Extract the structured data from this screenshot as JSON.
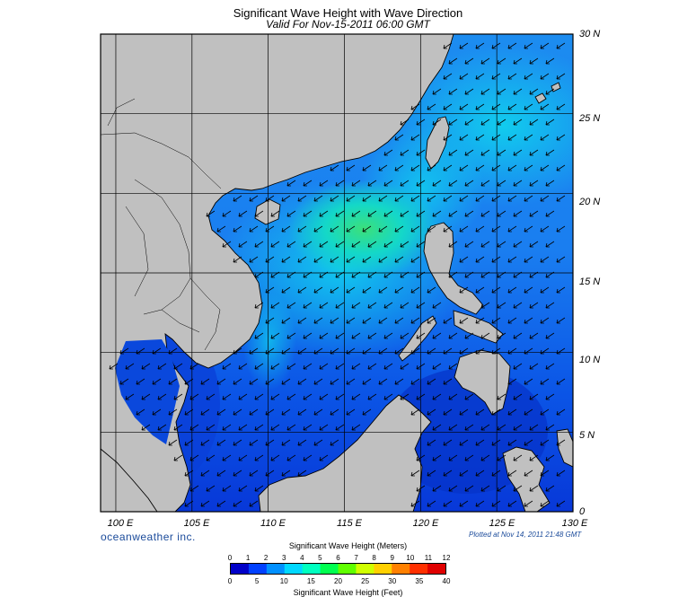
{
  "title": "Significant Wave Height with Wave Direction",
  "subtitle": "Valid For Nov-15-2011 06:00 GMT",
  "map": {
    "lon_range": [
      99,
      130
    ],
    "lat_range": [
      0,
      30
    ],
    "lat_labels": [
      "30 N",
      "25 N",
      "20 N",
      "15 N",
      "10 N",
      "5 N",
      "0"
    ],
    "lon_labels": [
      "100 E",
      "105 E",
      "110 E",
      "115 E",
      "120 E",
      "125 E",
      "130 E"
    ],
    "dominant_wave_direction": "toward southwest (from northeast)",
    "colors": {
      "land": "#c0c0c0",
      "low_sea": "#0a4ee0",
      "mid_sea": "#12d6e8",
      "high_sea": "#22e06a"
    }
  },
  "footer": {
    "brand": "oceanweather inc.",
    "plotted": "Plotted at Nov 14, 2011 21:48 GMT"
  },
  "legend": {
    "meters_label": "Significant Wave Height (Meters)",
    "feet_label": "Significant Wave Height (Feet)",
    "meters_ticks": [
      "0",
      "1",
      "2",
      "3",
      "4",
      "5",
      "6",
      "7",
      "8",
      "9",
      "10",
      "11",
      "12"
    ],
    "feet_ticks": [
      "0",
      "5",
      "10",
      "15",
      "20",
      "25",
      "30",
      "35",
      "40"
    ],
    "colors": [
      "#0000c8",
      "#0040ff",
      "#0090ff",
      "#00d8ff",
      "#00ffc0",
      "#00ff50",
      "#60ff00",
      "#d0ff00",
      "#ffd000",
      "#ff8000",
      "#ff3000",
      "#e00000"
    ]
  }
}
